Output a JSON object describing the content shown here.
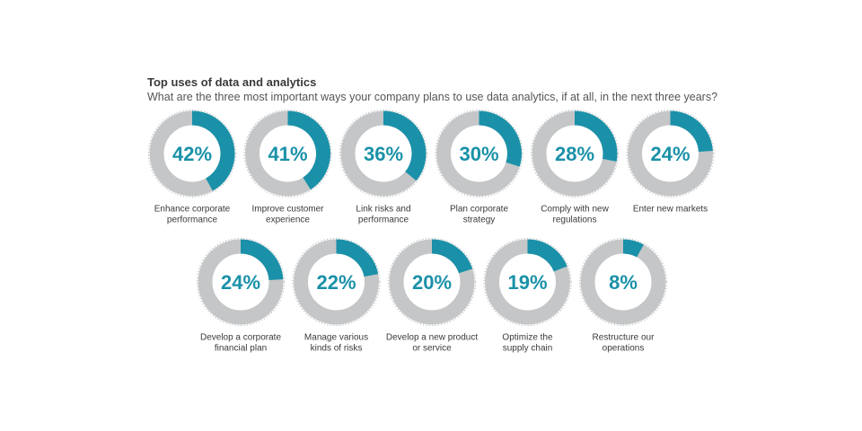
{
  "chart_data": {
    "type": "donut",
    "title": "Top uses of data and analytics",
    "subtitle": "What are the three most important ways your company plans to use data analytics, if at all, in the next three years?",
    "value_format": "percent",
    "colors": {
      "value": "#1a91a8",
      "remainder": "#c4c6c8",
      "outline": "#c4c6c8",
      "text": "#1a91a8",
      "label": "#3a3a3a"
    },
    "items": [
      {
        "label": "Enhance corporate performance",
        "label_lines": [
          "Enhance corporate",
          "performance"
        ],
        "value": 42,
        "display": "42%"
      },
      {
        "label": "Improve customer experience",
        "label_lines": [
          "Improve customer",
          "experience"
        ],
        "value": 41,
        "display": "41%"
      },
      {
        "label": "Link risks and performance",
        "label_lines": [
          "Link risks and",
          "performance"
        ],
        "value": 36,
        "display": "36%"
      },
      {
        "label": "Plan corporate strategy",
        "label_lines": [
          "Plan corporate",
          "strategy"
        ],
        "value": 30,
        "display": "30%"
      },
      {
        "label": "Comply with new regulations",
        "label_lines": [
          "Comply with new",
          "regulations"
        ],
        "value": 28,
        "display": "28%"
      },
      {
        "label": "Enter new markets",
        "label_lines": [
          "Enter new markets"
        ],
        "value": 24,
        "display": "24%"
      },
      {
        "label": "Develop a corporate financial plan",
        "label_lines": [
          "Develop a corporate",
          "financial plan"
        ],
        "value": 24,
        "display": "24%"
      },
      {
        "label": "Manage various kinds of risks",
        "label_lines": [
          "Manage various",
          "kinds of risks"
        ],
        "value": 22,
        "display": "22%"
      },
      {
        "label": "Develop a new product or service",
        "label_lines": [
          "Develop a new product",
          "or service"
        ],
        "value": 20,
        "display": "20%"
      },
      {
        "label": "Optimize the supply chain",
        "label_lines": [
          "Optimize the",
          "supply chain"
        ],
        "value": 19,
        "display": "19%"
      },
      {
        "label": "Restructure our operations",
        "label_lines": [
          "Restructure our",
          "operations"
        ],
        "value": 8,
        "display": "8%"
      }
    ]
  }
}
